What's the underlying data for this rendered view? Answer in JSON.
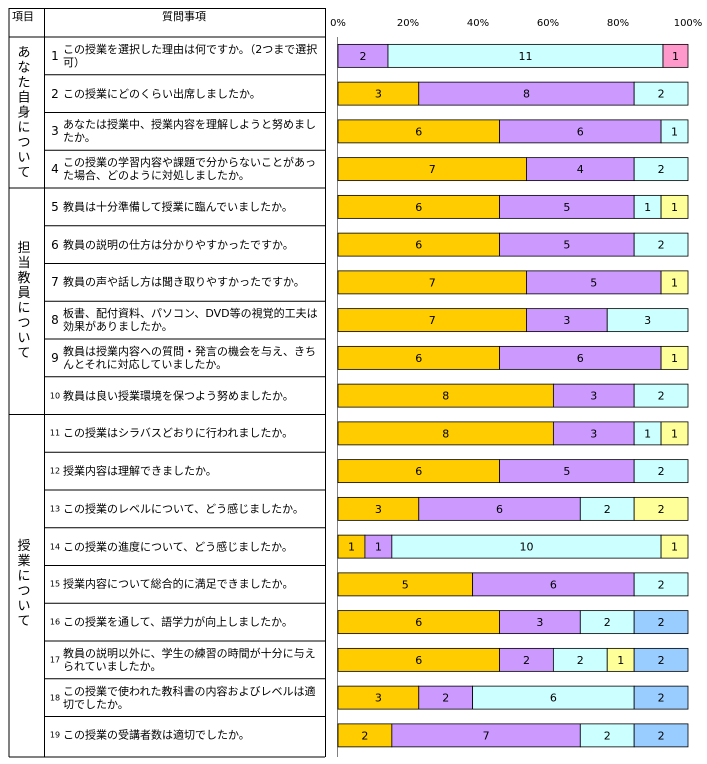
{
  "headers": {
    "category": "項目",
    "question": "質問事項"
  },
  "categories": [
    {
      "label": "あなた自身について",
      "first": 0,
      "last": 3
    },
    {
      "label": "担当教員について",
      "first": 4,
      "last": 9
    },
    {
      "label": "授業について",
      "first": 10,
      "last": 18
    }
  ],
  "colors": [
    "#ffcc00",
    "#cc99ff",
    "#ccffff",
    "#ffff99",
    "#99ccff",
    "#ff99cc"
  ],
  "chart_data": {
    "type": "bar",
    "orientation": "horizontal",
    "stacked": "percent",
    "xlim": [
      0,
      100
    ],
    "ticks": [
      "0%",
      "20%",
      "40%",
      "60%",
      "80%",
      "100%"
    ],
    "grid": false,
    "rows": [
      {
        "num": "1",
        "text": "この授業を選択した理由は何ですか。（2つまで選択可）",
        "segments": [
          {
            "value": 2,
            "color": "#cc99ff"
          },
          {
            "value": 11,
            "color": "#ccffff"
          },
          {
            "value": 1,
            "color": "#ff99cc"
          }
        ]
      },
      {
        "num": "2",
        "text": "この授業にどのくらい出席しましたか。",
        "segments": [
          {
            "value": 3,
            "color": "#ffcc00"
          },
          {
            "value": 8,
            "color": "#cc99ff"
          },
          {
            "value": 2,
            "color": "#ccffff"
          }
        ]
      },
      {
        "num": "3",
        "text": "あなたは授業中、授業内容を理解しようと努めましたか。",
        "segments": [
          {
            "value": 6,
            "color": "#ffcc00"
          },
          {
            "value": 6,
            "color": "#cc99ff"
          },
          {
            "value": 1,
            "color": "#ccffff"
          }
        ]
      },
      {
        "num": "4",
        "text": "この授業の学習内容や課題で分からないことがあった場合、どのように対処しましたか。",
        "segments": [
          {
            "value": 7,
            "color": "#ffcc00"
          },
          {
            "value": 4,
            "color": "#cc99ff"
          },
          {
            "value": 2,
            "color": "#ccffff"
          }
        ]
      },
      {
        "num": "5",
        "text": "教員は十分準備して授業に臨んでいましたか。",
        "segments": [
          {
            "value": 6,
            "color": "#ffcc00"
          },
          {
            "value": 5,
            "color": "#cc99ff"
          },
          {
            "value": 1,
            "color": "#ccffff"
          },
          {
            "value": 1,
            "color": "#ffff99"
          }
        ]
      },
      {
        "num": "6",
        "text": "教員の説明の仕方は分かりやすかったですか。",
        "segments": [
          {
            "value": 6,
            "color": "#ffcc00"
          },
          {
            "value": 5,
            "color": "#cc99ff"
          },
          {
            "value": 2,
            "color": "#ccffff"
          }
        ]
      },
      {
        "num": "7",
        "text": "教員の声や話し方は聞き取りやすかったですか。",
        "segments": [
          {
            "value": 7,
            "color": "#ffcc00"
          },
          {
            "value": 5,
            "color": "#cc99ff"
          },
          {
            "value": 1,
            "color": "#ffff99"
          }
        ]
      },
      {
        "num": "8",
        "text": "板書、配付資料、パソコン、DVD等の視覚的工夫は効果がありましたか。",
        "segments": [
          {
            "value": 7,
            "color": "#ffcc00"
          },
          {
            "value": 3,
            "color": "#cc99ff"
          },
          {
            "value": 3,
            "color": "#ccffff"
          }
        ]
      },
      {
        "num": "9",
        "text": "教員は授業内容への質問・発言の機会を与え、きちんとそれに対応していましたか。",
        "segments": [
          {
            "value": 6,
            "color": "#ffcc00"
          },
          {
            "value": 6,
            "color": "#cc99ff"
          },
          {
            "value": 1,
            "color": "#ffff99"
          }
        ]
      },
      {
        "num": "10",
        "text": "教員は良い授業環境を保つよう努めましたか。",
        "segments": [
          {
            "value": 8,
            "color": "#ffcc00"
          },
          {
            "value": 3,
            "color": "#cc99ff"
          },
          {
            "value": 2,
            "color": "#ccffff"
          }
        ]
      },
      {
        "num": "11",
        "text": "この授業はシラバスどおりに行われましたか。",
        "segments": [
          {
            "value": 8,
            "color": "#ffcc00"
          },
          {
            "value": 3,
            "color": "#cc99ff"
          },
          {
            "value": 1,
            "color": "#ccffff"
          },
          {
            "value": 1,
            "color": "#ffff99"
          }
        ]
      },
      {
        "num": "12",
        "text": "授業内容は理解できましたか。",
        "segments": [
          {
            "value": 6,
            "color": "#ffcc00"
          },
          {
            "value": 5,
            "color": "#cc99ff"
          },
          {
            "value": 2,
            "color": "#ccffff"
          }
        ]
      },
      {
        "num": "13",
        "text": "この授業のレベルについて、どう感じましたか。",
        "segments": [
          {
            "value": 3,
            "color": "#ffcc00"
          },
          {
            "value": 6,
            "color": "#cc99ff"
          },
          {
            "value": 2,
            "color": "#ccffff"
          },
          {
            "value": 2,
            "color": "#ffff99"
          }
        ]
      },
      {
        "num": "14",
        "text": "この授業の進度について、どう感じましたか。",
        "segments": [
          {
            "value": 1,
            "color": "#ffcc00"
          },
          {
            "value": 1,
            "color": "#cc99ff"
          },
          {
            "value": 10,
            "color": "#ccffff"
          },
          {
            "value": 1,
            "color": "#ffff99"
          }
        ]
      },
      {
        "num": "15",
        "text": "授業内容について総合的に満足できましたか。",
        "segments": [
          {
            "value": 5,
            "color": "#ffcc00"
          },
          {
            "value": 6,
            "color": "#cc99ff"
          },
          {
            "value": 2,
            "color": "#ccffff"
          }
        ]
      },
      {
        "num": "16",
        "text": "この授業を通して、語学力が向上しましたか。",
        "segments": [
          {
            "value": 6,
            "color": "#ffcc00"
          },
          {
            "value": 3,
            "color": "#cc99ff"
          },
          {
            "value": 2,
            "color": "#ccffff"
          },
          {
            "value": 2,
            "color": "#99ccff"
          }
        ]
      },
      {
        "num": "17",
        "text": "教員の説明以外に、学生の練習の時間が十分に与えられていましたか。",
        "segments": [
          {
            "value": 6,
            "color": "#ffcc00"
          },
          {
            "value": 2,
            "color": "#cc99ff"
          },
          {
            "value": 2,
            "color": "#ccffff"
          },
          {
            "value": 1,
            "color": "#ffff99"
          },
          {
            "value": 2,
            "color": "#99ccff"
          }
        ]
      },
      {
        "num": "18",
        "text": "この授業で使われた教科書の内容およびレベルは適切でしたか。",
        "segments": [
          {
            "value": 3,
            "color": "#ffcc00"
          },
          {
            "value": 2,
            "color": "#cc99ff"
          },
          {
            "value": 6,
            "color": "#ccffff"
          },
          {
            "value": 2,
            "color": "#99ccff"
          }
        ]
      },
      {
        "num": "19",
        "text": "この授業の受講者数は適切でしたか。",
        "segments": [
          {
            "value": 2,
            "color": "#ffcc00"
          },
          {
            "value": 7,
            "color": "#cc99ff"
          },
          {
            "value": 2,
            "color": "#ccffff"
          },
          {
            "value": 2,
            "color": "#99ccff"
          }
        ]
      }
    ]
  }
}
